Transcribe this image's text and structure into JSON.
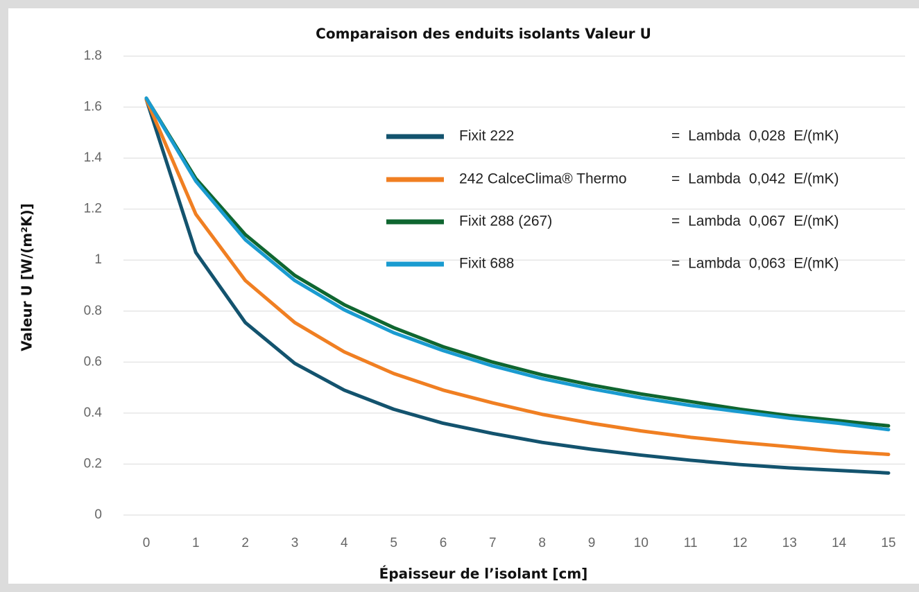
{
  "chart_data": {
    "type": "line",
    "title": "Comparaison des enduits isolants Valeur U",
    "x_label": "Épaisseur de l’isolant [cm]",
    "y_label": "Valeur U [W/(m²K)]",
    "x": [
      0,
      1,
      2,
      3,
      4,
      5,
      6,
      7,
      8,
      9,
      10,
      11,
      12,
      13,
      14,
      15
    ],
    "xlim": [
      0,
      15
    ],
    "xticks": [
      0,
      1,
      2,
      3,
      4,
      5,
      6,
      7,
      8,
      9,
      10,
      11,
      12,
      13,
      14,
      15
    ],
    "ylim": [
      0,
      1.8
    ],
    "yticks": [
      0,
      0.2,
      0.4,
      0.6,
      0.8,
      1,
      1.2,
      1.4,
      1.6,
      1.8
    ],
    "grid": true,
    "legend": "upper right",
    "series": [
      {
        "name": "Fixit 222",
        "description": "= Lambda 0,028 E/(mK)",
        "color": "#13536e",
        "values": [
          1.63,
          1.03,
          0.755,
          0.595,
          0.49,
          0.415,
          0.36,
          0.32,
          0.285,
          0.258,
          0.235,
          0.215,
          0.198,
          0.185,
          0.175,
          0.165
        ]
      },
      {
        "name": "242 CalceClima® Thermo",
        "description": "= Lambda 0,042 E/(mK)",
        "color": "#f07f22",
        "values": [
          1.63,
          1.18,
          0.92,
          0.755,
          0.64,
          0.555,
          0.49,
          0.44,
          0.395,
          0.36,
          0.33,
          0.305,
          0.285,
          0.268,
          0.25,
          0.238
        ]
      },
      {
        "name": "Fixit 288 (267)",
        "description": "= Lambda 0,067 E/(mK)",
        "color": "#0f6630",
        "values": [
          1.635,
          1.32,
          1.1,
          0.94,
          0.825,
          0.735,
          0.66,
          0.6,
          0.55,
          0.51,
          0.475,
          0.445,
          0.415,
          0.39,
          0.37,
          0.35
        ]
      },
      {
        "name": "Fixit 688",
        "description": "= Lambda 0,063 E/(mK)",
        "color": "#1a9bd0",
        "values": [
          1.635,
          1.31,
          1.08,
          0.92,
          0.805,
          0.715,
          0.645,
          0.585,
          0.535,
          0.495,
          0.46,
          0.43,
          0.405,
          0.38,
          0.36,
          0.335
        ]
      }
    ]
  }
}
